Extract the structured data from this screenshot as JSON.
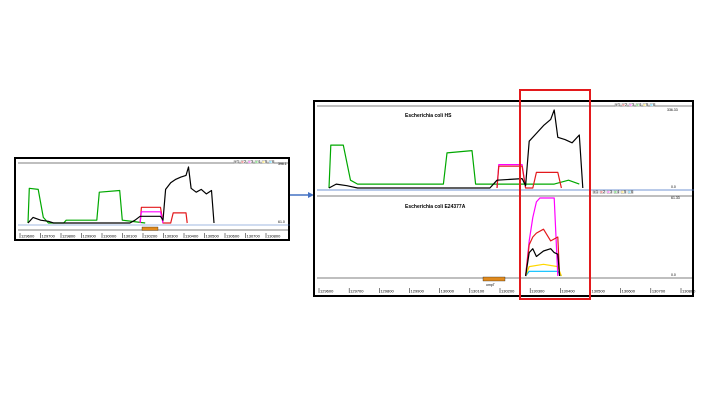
{
  "chart_data": [
    {
      "type": "line",
      "panel": "overview",
      "x_tick_labels": [
        "129600",
        "129700",
        "129800",
        "129900",
        "130000",
        "130100",
        "130200",
        "130300",
        "130400",
        "130500",
        "130600",
        "130700",
        "130800"
      ],
      "scale_top": "396.1",
      "scale_bottom": "61.0",
      "legend": [
        "1",
        "2",
        "3",
        "4",
        "5",
        "6"
      ],
      "series_colors": [
        "#000000",
        "#e3191c",
        "#ff00ff",
        "#00c000",
        "#ffd700",
        "#00bfff"
      ],
      "series": [
        {
          "color": "#00a800",
          "points": [
            [
              0,
              0.0
            ],
            [
              0.5,
              0.62
            ],
            [
              4,
              0.6
            ],
            [
              6,
              0.1
            ],
            [
              8,
              0.0
            ],
            [
              14,
              0.0
            ],
            [
              15,
              0.05
            ],
            [
              27,
              0.05
            ],
            [
              28,
              0.55
            ],
            [
              36,
              0.58
            ],
            [
              37,
              0.05
            ],
            [
              46,
              0.0
            ]
          ]
        },
        {
          "color": "#e3191c",
          "points": [
            [
              44,
              0.0
            ],
            [
              44.5,
              0.28
            ],
            [
              52,
              0.28
            ],
            [
              53,
              0.0
            ],
            [
              56,
              0.0
            ],
            [
              57,
              0.18
            ],
            [
              62,
              0.18
            ],
            [
              62.5,
              0.0
            ]
          ]
        },
        {
          "color": "#ff00ff",
          "points": [
            [
              44,
              0.0
            ],
            [
              44.5,
              0.2
            ],
            [
              52,
              0.2
            ],
            [
              53,
              0.0
            ]
          ]
        },
        {
          "color": "#000000",
          "points": [
            [
              0,
              0.0
            ],
            [
              2,
              0.1
            ],
            [
              5,
              0.05
            ],
            [
              8,
              0.03
            ],
            [
              10,
              0.0
            ],
            [
              40,
              0.0
            ],
            [
              42,
              0.05
            ],
            [
              44,
              0.12
            ],
            [
              52,
              0.12
            ],
            [
              53,
              0.05
            ],
            [
              54,
              0.6
            ],
            [
              56,
              0.72
            ],
            [
              58,
              0.78
            ],
            [
              60,
              0.82
            ],
            [
              62,
              0.85
            ],
            [
              63,
              1.0
            ],
            [
              64,
              0.62
            ],
            [
              66,
              0.55
            ],
            [
              68,
              0.6
            ],
            [
              70,
              0.52
            ],
            [
              72,
              0.58
            ],
            [
              73,
              0.0
            ]
          ]
        }
      ],
      "gene_position": [
        0.36,
        0.42
      ]
    },
    {
      "type": "line",
      "panel": "detail",
      "x_tick_labels": [
        "129600",
        "129700",
        "129800",
        "129900",
        "130000",
        "130100",
        "130200",
        "130300",
        "130400",
        "130500",
        "130600",
        "130700",
        "130800"
      ],
      "gene_label": "ompT",
      "tracks": [
        {
          "title": "Escherichia coli HS",
          "scale_top": "336.33",
          "scale_bottom": "0.0",
          "legend": [
            "1",
            "2",
            "3",
            "4",
            "5",
            "6"
          ],
          "series": [
            {
              "color": "#00a800",
              "points": [
                [
                  0,
                  0.0
                ],
                [
                  0.5,
                  0.55
                ],
                [
                  4,
                  0.55
                ],
                [
                  6,
                  0.1
                ],
                [
                  8,
                  0.05
                ],
                [
                  15,
                  0.05
                ],
                [
                  16,
                  0.05
                ],
                [
                  32,
                  0.05
                ],
                [
                  33,
                  0.45
                ],
                [
                  40,
                  0.48
                ],
                [
                  41,
                  0.05
                ],
                [
                  48,
                  0.05
                ],
                [
                  55,
                  0.05
                ],
                [
                  63,
                  0.05
                ],
                [
                  67,
                  0.1
                ],
                [
                  70,
                  0.05
                ]
              ]
            },
            {
              "color": "#ff00ff",
              "points": [
                [
                  47,
                  0.0
                ],
                [
                  47.5,
                  0.3
                ],
                [
                  54,
                  0.3
                ],
                [
                  55,
                  0.0
                ]
              ]
            },
            {
              "color": "#e3191c",
              "points": [
                [
                  47,
                  0.0
                ],
                [
                  47.5,
                  0.28
                ],
                [
                  54,
                  0.28
                ],
                [
                  55,
                  0.0
                ],
                [
                  57,
                  0.0
                ],
                [
                  58,
                  0.2
                ],
                [
                  64,
                  0.2
                ],
                [
                  65,
                  0.0
                ]
              ]
            },
            {
              "color": "#000000",
              "points": [
                [
                  0,
                  0.0
                ],
                [
                  2,
                  0.05
                ],
                [
                  5,
                  0.03
                ],
                [
                  8,
                  0.0
                ],
                [
                  45,
                  0.0
                ],
                [
                  47,
                  0.1
                ],
                [
                  54,
                  0.12
                ],
                [
                  55,
                  0.03
                ],
                [
                  56,
                  0.6
                ],
                [
                  58,
                  0.7
                ],
                [
                  60,
                  0.8
                ],
                [
                  62,
                  0.88
                ],
                [
                  63,
                  1.0
                ],
                [
                  64,
                  0.65
                ],
                [
                  66,
                  0.62
                ],
                [
                  68,
                  0.58
                ],
                [
                  70,
                  0.68
                ],
                [
                  71,
                  0.0
                ]
              ]
            }
          ]
        },
        {
          "title": "Escherichia coli E24377A",
          "scale_top": "61.33",
          "scale_bottom": "0.0",
          "series": [
            {
              "color": "#00bfff",
              "points": [
                [
                  55,
                  0.0
                ],
                [
                  56,
                  0.06
                ],
                [
                  64,
                  0.06
                ],
                [
                  65,
                  0.0
                ]
              ]
            },
            {
              "color": "#ffd700",
              "points": [
                [
                  55,
                  0.0
                ],
                [
                  56,
                  0.12
                ],
                [
                  60,
                  0.15
                ],
                [
                  64,
                  0.12
                ],
                [
                  65,
                  0.0
                ]
              ]
            },
            {
              "color": "#ff00ff",
              "points": [
                [
                  55,
                  0.0
                ],
                [
                  56,
                  0.45
                ],
                [
                  57,
                  0.75
                ],
                [
                  58,
                  0.95
                ],
                [
                  59,
                  1.0
                ],
                [
                  63,
                  1.0
                ],
                [
                  64,
                  0.0
                ]
              ]
            },
            {
              "color": "#e3191c",
              "points": [
                [
                  55,
                  0.0
                ],
                [
                  56,
                  0.4
                ],
                [
                  57,
                  0.5
                ],
                [
                  58,
                  0.55
                ],
                [
                  60,
                  0.6
                ],
                [
                  62,
                  0.45
                ],
                [
                  64,
                  0.5
                ],
                [
                  64.5,
                  0.0
                ]
              ]
            },
            {
              "color": "#000000",
              "points": [
                [
                  55,
                  0.0
                ],
                [
                  56,
                  0.3
                ],
                [
                  57,
                  0.35
                ],
                [
                  58,
                  0.25
                ],
                [
                  60,
                  0.32
                ],
                [
                  62,
                  0.35
                ],
                [
                  63,
                  0.3
                ],
                [
                  64,
                  0.28
                ],
                [
                  64.5,
                  0.0
                ]
              ]
            }
          ]
        }
      ]
    }
  ]
}
